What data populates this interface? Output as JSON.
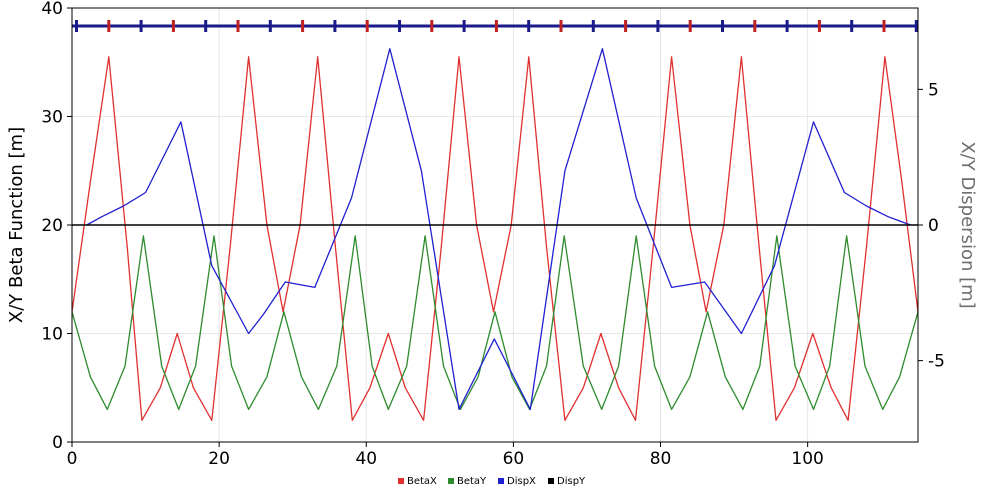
{
  "chart_data": {
    "type": "line",
    "title": "",
    "xlabel": "",
    "ylabel": "X/Y Beta Function [m]",
    "y2label": "X/Y Dispersion [m]",
    "xlim": [
      0,
      115
    ],
    "ylim": [
      0,
      40
    ],
    "y2lim": [
      -8,
      8
    ],
    "x_ticks": [
      0,
      20,
      40,
      60,
      80,
      100
    ],
    "y_ticks": [
      0,
      10,
      20,
      30,
      40
    ],
    "y2_ticks": [
      -5,
      0,
      5
    ],
    "grid": true,
    "legend_position": "bottom-center",
    "series": [
      {
        "name": "BetaX",
        "axis": "left",
        "color": "#e03030",
        "x": [
          0,
          2.5,
          5,
          7.5,
          9.5,
          12,
          14.3,
          16.5,
          19,
          21.5,
          24,
          26.5,
          28.7,
          31,
          33.4,
          35.8,
          38.1,
          40.5,
          43,
          45.3,
          47.8,
          50.2,
          52.6,
          55,
          57.3,
          59.7,
          62.1,
          64.5,
          67,
          69.5,
          71.9,
          74.3,
          76.6,
          79,
          81.5,
          84,
          86.2,
          88.6,
          91,
          93.4,
          95.7,
          98.2,
          100.7,
          103.2,
          105.5,
          108,
          110.5,
          112.8,
          115
        ],
        "y": [
          12,
          24,
          35.5,
          18,
          2,
          5,
          10,
          5,
          2,
          18,
          35.5,
          20,
          12,
          20,
          35.5,
          18,
          2,
          5,
          10,
          5,
          2,
          18,
          35.5,
          20,
          12,
          20,
          35.5,
          18,
          2,
          5,
          10,
          5,
          2,
          18,
          35.5,
          20,
          12,
          20,
          35.5,
          18,
          2,
          5,
          10,
          5,
          2,
          18,
          35.5,
          24,
          12
        ]
      },
      {
        "name": "BetaY",
        "axis": "left",
        "color": "#2e8b2e",
        "x": [
          0,
          2.5,
          4.8,
          7.2,
          9.7,
          12.2,
          14.5,
          16.8,
          19.3,
          21.7,
          24,
          26.5,
          28.8,
          31.2,
          33.5,
          36,
          38.5,
          40.8,
          43,
          45.5,
          48,
          50.5,
          52.8,
          55.2,
          57.5,
          59.8,
          62.2,
          64.5,
          66.9,
          69.5,
          72,
          74.3,
          76.7,
          79.2,
          81.5,
          84,
          86.4,
          88.8,
          91.2,
          93.5,
          95.8,
          98.3,
          100.8,
          103,
          105.3,
          107.8,
          110.2,
          112.5,
          115
        ],
        "y": [
          12,
          6,
          3,
          7,
          19,
          7,
          3,
          7,
          19,
          7,
          3,
          6,
          12,
          6,
          3,
          7,
          19,
          7,
          3,
          7,
          19,
          7,
          3,
          6,
          12,
          6,
          3,
          7,
          19,
          7,
          3,
          7,
          19,
          7,
          3,
          6,
          12,
          6,
          3,
          7,
          19,
          7,
          3,
          7,
          19,
          7,
          3,
          6,
          12
        ]
      },
      {
        "name": "DispX",
        "axis": "right",
        "color": "#2020d0",
        "x": [
          2,
          4,
          7,
          10,
          14.8,
          19,
          24,
          26,
          29,
          33,
          38,
          43.2,
          47.5,
          52.6,
          57.4,
          62.3,
          67,
          72.1,
          76.7,
          81.5,
          86,
          91,
          95.5,
          100.8,
          105,
          108,
          111,
          114
        ],
        "y": [
          0,
          0.3,
          0.7,
          1.2,
          3.8,
          -1.5,
          -4,
          -3.3,
          -2.1,
          -2.3,
          1,
          6.5,
          2,
          -6.8,
          -4.2,
          -6.8,
          2,
          6.5,
          1,
          -2.3,
          -2.1,
          -4,
          -1.5,
          3.8,
          1.2,
          0.7,
          0.3,
          0
        ]
      },
      {
        "name": "DispY",
        "axis": "right",
        "color": "#000000",
        "x": [
          0,
          115
        ],
        "y": [
          0,
          0
        ]
      }
    ]
  }
}
